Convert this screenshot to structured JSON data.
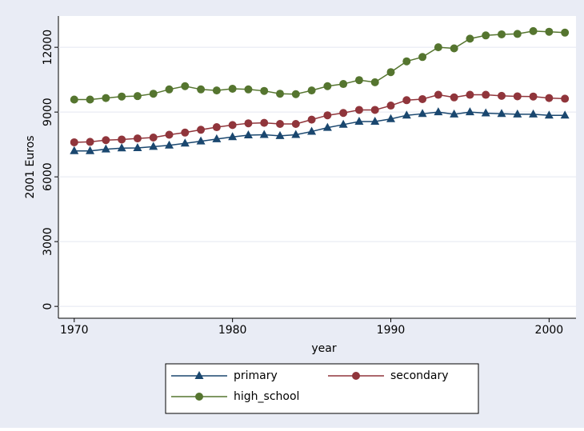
{
  "chart_data": {
    "type": "line",
    "x": [
      1970,
      1971,
      1972,
      1973,
      1974,
      1975,
      1976,
      1977,
      1978,
      1979,
      1980,
      1981,
      1982,
      1983,
      1984,
      1985,
      1986,
      1987,
      1988,
      1989,
      1990,
      1991,
      1992,
      1993,
      1994,
      1995,
      1996,
      1997,
      1998,
      1999,
      2000,
      2001
    ],
    "series": [
      {
        "name": "primary",
        "color": "#1a476f",
        "marker": "triangle",
        "values": [
          7200,
          7200,
          7280,
          7330,
          7340,
          7400,
          7460,
          7550,
          7650,
          7750,
          7850,
          7930,
          7950,
          7900,
          7950,
          8100,
          8280,
          8420,
          8560,
          8560,
          8680,
          8850,
          8920,
          9000,
          8900,
          9000,
          8950,
          8920,
          8900,
          8900,
          8850,
          8850
        ]
      },
      {
        "name": "secondary",
        "color": "#90353b",
        "marker": "circle",
        "values": [
          7600,
          7620,
          7700,
          7730,
          7780,
          7820,
          7950,
          8050,
          8180,
          8300,
          8400,
          8480,
          8500,
          8450,
          8450,
          8650,
          8850,
          8960,
          9100,
          9100,
          9300,
          9550,
          9600,
          9800,
          9680,
          9800,
          9800,
          9750,
          9730,
          9720,
          9650,
          9620
        ]
      },
      {
        "name": "high_school",
        "color": "#55752f",
        "marker": "circle",
        "values": [
          9580,
          9580,
          9650,
          9720,
          9740,
          9850,
          10050,
          10200,
          10050,
          10000,
          10080,
          10050,
          9980,
          9850,
          9830,
          10000,
          10200,
          10300,
          10480,
          10380,
          10850,
          11350,
          11550,
          12000,
          11950,
          12400,
          12550,
          12600,
          12620,
          12750,
          12720,
          12680
        ]
      }
    ],
    "xlabel": "year",
    "ylabel": "2001 Euros",
    "xlim": [
      1969,
      2001.7
    ],
    "xticks": [
      1970,
      1980,
      1990,
      2000
    ],
    "ylim": [
      -550,
      13450
    ],
    "yticks": [
      0,
      3000,
      6000,
      9000,
      12000
    ],
    "grid": true
  }
}
